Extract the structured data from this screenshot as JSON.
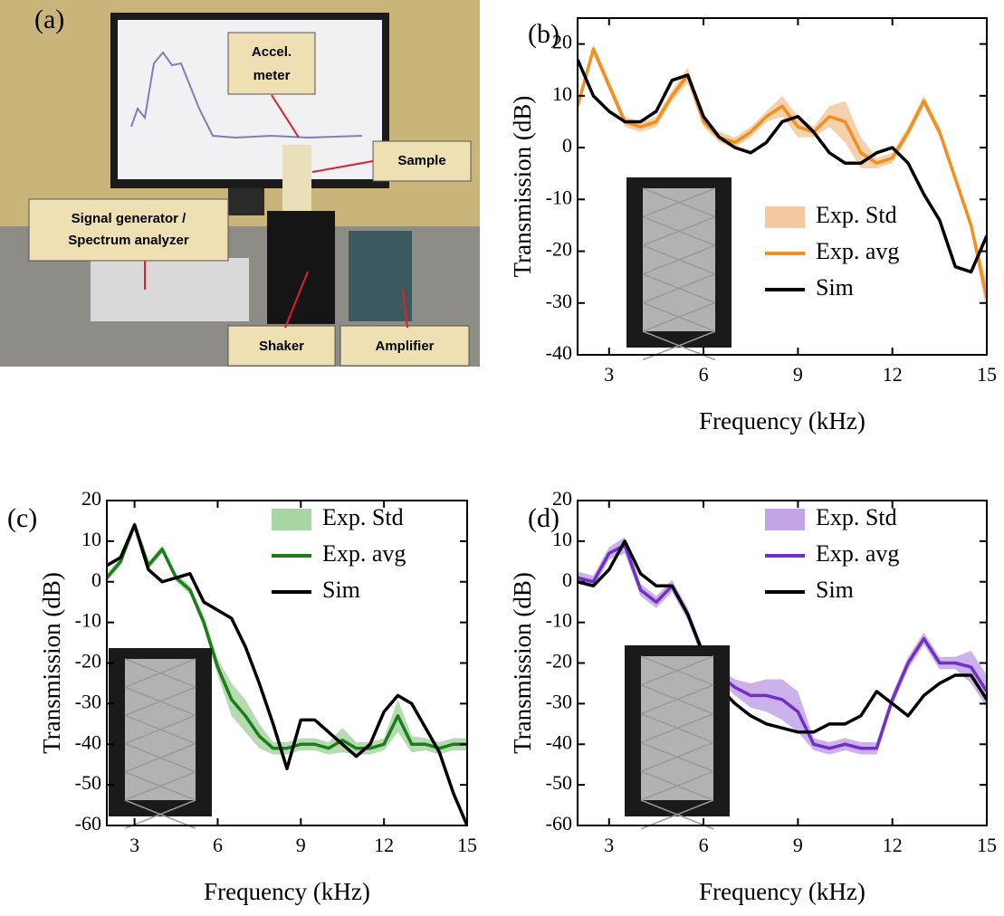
{
  "panel_a": {
    "label": "(a)",
    "accel": [
      "Accel.",
      "meter"
    ],
    "sample": "Sample",
    "generator": [
      "Signal generator /",
      "Spectrum analyzer"
    ],
    "shaker": "Shaker",
    "amplifier": "Amplifier"
  },
  "chart_data": [
    {
      "type": "line",
      "panel_label": "(b)",
      "xlabel": "Frequency (kHz)",
      "ylabel": "Transmission (dB)",
      "x": [
        2,
        2.5,
        3,
        3.5,
        4,
        4.5,
        5,
        5.5,
        6,
        6.5,
        7,
        7.5,
        8,
        8.5,
        9,
        9.5,
        10,
        10.5,
        11,
        11.5,
        12,
        12.5,
        13,
        13.5,
        14,
        14.5,
        15
      ],
      "xlim": [
        2,
        15
      ],
      "xticks": [
        3,
        6,
        9,
        12,
        15
      ],
      "ylim": [
        -40,
        25
      ],
      "yticks": [
        -40,
        -30,
        -20,
        -10,
        0,
        10,
        20
      ],
      "series": [
        {
          "name": "Exp. Std",
          "color": "#f5c9a0",
          "upper": [
            9,
            20,
            13,
            6,
            5,
            6,
            11,
            15.5,
            6,
            3,
            2,
            4,
            7,
            10,
            6,
            4,
            8,
            9,
            2,
            -2,
            -1,
            4,
            10,
            4,
            -5,
            -14,
            -26
          ],
          "lower": [
            7,
            18,
            11,
            4,
            3,
            4,
            9,
            12.5,
            4,
            1,
            0,
            2,
            5,
            6,
            2,
            2,
            4,
            1,
            -4,
            -4,
            -3,
            2,
            8,
            2,
            -7,
            -16,
            -32
          ]
        },
        {
          "name": "Exp. avg",
          "color": "#f0901e",
          "values": [
            8,
            19,
            12,
            5,
            4,
            5,
            10,
            14,
            5,
            2,
            1,
            3,
            6,
            8,
            4,
            3,
            6,
            5,
            -1,
            -3,
            -2,
            3,
            9,
            3,
            -6,
            -15,
            -29
          ]
        },
        {
          "name": "Sim",
          "color": "#000000",
          "values": [
            17,
            10,
            7,
            5,
            5,
            7,
            13,
            14,
            6,
            2,
            0,
            -1,
            1,
            5,
            6,
            3,
            -1,
            -3,
            -3,
            -1,
            0,
            -3,
            -9,
            -14,
            -23,
            -24,
            -17
          ]
        }
      ]
    },
    {
      "type": "line",
      "panel_label": "(c)",
      "xlabel": "Frequency (kHz)",
      "ylabel": "Transmission (dB)",
      "x": [
        2,
        2.5,
        3,
        3.5,
        4,
        4.5,
        5,
        5.5,
        6,
        6.5,
        7,
        7.5,
        8,
        8.5,
        9,
        9.5,
        10,
        10.5,
        11,
        11.5,
        12,
        12.5,
        13,
        13.5,
        14,
        14.5,
        15
      ],
      "xlim": [
        2,
        15
      ],
      "xticks": [
        3,
        6,
        9,
        12,
        15
      ],
      "ylim": [
        -60,
        20
      ],
      "yticks": [
        -60,
        -50,
        -40,
        -30,
        -20,
        -10,
        0,
        10,
        20
      ],
      "series": [
        {
          "name": "Exp. Std",
          "color": "#a9d4a4",
          "upper": [
            2,
            6,
            15,
            5,
            9,
            2,
            -1,
            -8.5,
            -19,
            -25,
            -29,
            -35,
            -39.5,
            -39.5,
            -38.5,
            -38.5,
            -39.5,
            -36,
            -39.5,
            -39.5,
            -38.5,
            -29,
            -38,
            -38.5,
            -39.5,
            -38.5,
            -38.5
          ],
          "lower": [
            0,
            4,
            13,
            3,
            7,
            0,
            -3,
            -11.5,
            -23,
            -33,
            -37,
            -41,
            -42.5,
            -42.5,
            -41.5,
            -41.5,
            -42.5,
            -42,
            -42.5,
            -42.5,
            -41.5,
            -37,
            -42,
            -41.5,
            -42.5,
            -41.5,
            -41.5
          ]
        },
        {
          "name": "Exp. avg",
          "color": "#1a7f1a",
          "values": [
            1,
            5,
            14,
            4,
            8,
            1,
            -2,
            -10,
            -21,
            -29,
            -33,
            -38,
            -41,
            -41,
            -40,
            -40,
            -41,
            -39,
            -41,
            -41,
            -40,
            -33,
            -40,
            -40,
            -41,
            -40,
            -40
          ]
        },
        {
          "name": "Sim",
          "color": "#000000",
          "values": [
            4,
            6,
            14,
            3,
            0,
            1,
            2,
            -5,
            -7,
            -9,
            -16,
            -25,
            -35,
            -46,
            -34,
            -34,
            -37,
            -40,
            -43,
            -40,
            -32,
            -28,
            -30,
            -36,
            -42,
            -52,
            -60
          ]
        }
      ]
    },
    {
      "type": "line",
      "panel_label": "(d)",
      "xlabel": "Frequency (kHz)",
      "ylabel": "Transmission (dB)",
      "x": [
        2,
        2.5,
        3,
        3.5,
        4,
        4.5,
        5,
        5.5,
        6,
        6.5,
        7,
        7.5,
        8,
        8.5,
        9,
        9.5,
        10,
        10.5,
        11,
        11.5,
        12,
        12.5,
        13,
        13.5,
        14,
        14.5,
        15
      ],
      "xlim": [
        2,
        15
      ],
      "xticks": [
        3,
        6,
        9,
        12,
        15
      ],
      "ylim": [
        -60,
        20
      ],
      "yticks": [
        -60,
        -50,
        -40,
        -30,
        -20,
        -10,
        0,
        10,
        20
      ],
      "series": [
        {
          "name": "Exp. Std",
          "color": "#c3a4e6",
          "upper": [
            2.5,
            1.5,
            8.5,
            11,
            -0.5,
            -3.5,
            0.5,
            -6.5,
            -16.5,
            -21.5,
            -24,
            -25,
            -24,
            -24,
            -27,
            -38.5,
            -39.5,
            -38.5,
            -39.5,
            -39.5,
            -27.5,
            -18.5,
            -12.5,
            -18.5,
            -18.5,
            -17,
            -23
          ],
          "lower": [
            -0.5,
            -1.5,
            5.5,
            7,
            -3.5,
            -6.5,
            -2.5,
            -9.5,
            -19.5,
            -24.5,
            -28,
            -31,
            -32,
            -34,
            -37,
            -41.5,
            -42.5,
            -41.5,
            -42.5,
            -42.5,
            -30.5,
            -21.5,
            -15.5,
            -21.5,
            -21.5,
            -25,
            -31
          ]
        },
        {
          "name": "Exp. avg",
          "color": "#7030c8",
          "values": [
            1,
            0,
            7,
            9,
            -2,
            -5,
            -1,
            -8,
            -18,
            -23,
            -26,
            -28,
            -28,
            -29,
            -32,
            -40,
            -41,
            -40,
            -41,
            -41,
            -29,
            -20,
            -14,
            -20,
            -20,
            -21,
            -27
          ]
        },
        {
          "name": "Sim",
          "color": "#000000",
          "values": [
            0,
            -1,
            3,
            10,
            2,
            -1,
            -1,
            -8,
            -18,
            -26,
            -30,
            -33,
            -35,
            -36,
            -37,
            -37,
            -35,
            -35,
            -33,
            -27,
            -30,
            -33,
            -28,
            -25,
            -23,
            -23,
            -29
          ]
        }
      ]
    }
  ]
}
